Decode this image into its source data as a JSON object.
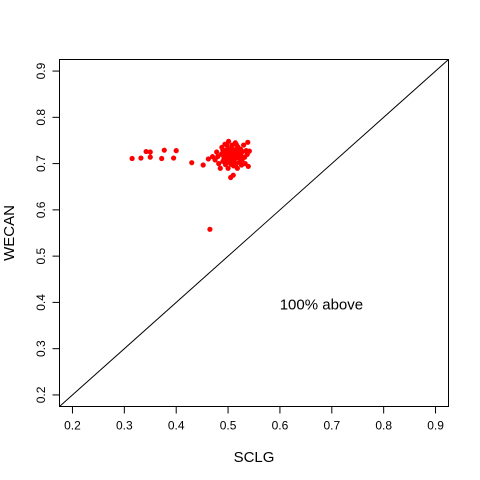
{
  "chart_data": {
    "type": "scatter",
    "title": "",
    "xlabel": "SCLG",
    "ylabel": "WECAN",
    "xlim": [
      0.175,
      0.925
    ],
    "ylim": [
      0.175,
      0.925
    ],
    "xticks": [
      0.2,
      0.3,
      0.4,
      0.5,
      0.6,
      0.7,
      0.8,
      0.9
    ],
    "yticks": [
      0.2,
      0.3,
      0.4,
      0.5,
      0.6,
      0.7,
      0.8,
      0.9
    ],
    "tick_labels_x": [
      "0.2",
      "0.3",
      "0.4",
      "0.5",
      "0.6",
      "0.7",
      "0.8",
      "0.9"
    ],
    "tick_labels_y": [
      "0.2",
      "0.3",
      "0.4",
      "0.5",
      "0.6",
      "0.7",
      "0.8",
      "0.9"
    ],
    "grid": false,
    "reference_line": {
      "type": "y=x"
    },
    "annotation": {
      "text": "100% above",
      "x": 0.68,
      "y": 0.395
    },
    "colors": {
      "points": "#ff0000",
      "line": "#000000",
      "axes": "#000000"
    },
    "series": [
      {
        "points": [
          [
            0.315,
            0.711
          ],
          [
            0.332,
            0.712
          ],
          [
            0.342,
            0.726
          ],
          [
            0.35,
            0.714
          ],
          [
            0.35,
            0.725
          ],
          [
            0.372,
            0.711
          ],
          [
            0.377,
            0.729
          ],
          [
            0.395,
            0.712
          ],
          [
            0.4,
            0.728
          ],
          [
            0.43,
            0.702
          ],
          [
            0.452,
            0.697
          ],
          [
            0.462,
            0.71
          ],
          [
            0.465,
            0.558
          ],
          [
            0.47,
            0.715
          ],
          [
            0.475,
            0.708
          ],
          [
            0.478,
            0.725
          ],
          [
            0.48,
            0.715
          ],
          [
            0.482,
            0.7
          ],
          [
            0.485,
            0.69
          ],
          [
            0.487,
            0.72
          ],
          [
            0.488,
            0.735
          ],
          [
            0.49,
            0.705
          ],
          [
            0.49,
            0.728
          ],
          [
            0.492,
            0.712
          ],
          [
            0.494,
            0.742
          ],
          [
            0.495,
            0.698
          ],
          [
            0.496,
            0.722
          ],
          [
            0.497,
            0.73
          ],
          [
            0.498,
            0.706
          ],
          [
            0.499,
            0.716
          ],
          [
            0.5,
            0.69
          ],
          [
            0.5,
            0.725
          ],
          [
            0.501,
            0.748
          ],
          [
            0.502,
            0.708
          ],
          [
            0.503,
            0.718
          ],
          [
            0.504,
            0.732
          ],
          [
            0.505,
            0.7
          ],
          [
            0.505,
            0.67
          ],
          [
            0.506,
            0.713
          ],
          [
            0.507,
            0.724
          ],
          [
            0.508,
            0.74
          ],
          [
            0.509,
            0.705
          ],
          [
            0.51,
            0.675
          ],
          [
            0.51,
            0.72
          ],
          [
            0.511,
            0.695
          ],
          [
            0.512,
            0.73
          ],
          [
            0.513,
            0.71
          ],
          [
            0.514,
            0.745
          ],
          [
            0.515,
            0.715
          ],
          [
            0.516,
            0.7
          ],
          [
            0.517,
            0.727
          ],
          [
            0.518,
            0.69
          ],
          [
            0.519,
            0.736
          ],
          [
            0.52,
            0.712
          ],
          [
            0.521,
            0.722
          ],
          [
            0.522,
            0.703
          ],
          [
            0.524,
            0.731
          ],
          [
            0.525,
            0.717
          ],
          [
            0.527,
            0.708
          ],
          [
            0.528,
            0.726
          ],
          [
            0.53,
            0.74
          ],
          [
            0.532,
            0.714
          ],
          [
            0.533,
            0.7
          ],
          [
            0.535,
            0.728
          ],
          [
            0.537,
            0.72
          ],
          [
            0.538,
            0.746
          ],
          [
            0.539,
            0.694
          ],
          [
            0.541,
            0.727
          ],
          [
            0.506,
            0.733
          ],
          [
            0.498,
            0.74
          ],
          [
            0.511,
            0.706
          ],
          [
            0.503,
            0.702
          ],
          [
            0.494,
            0.716
          ],
          [
            0.519,
            0.718
          ],
          [
            0.526,
            0.697
          ],
          [
            0.516,
            0.741
          ],
          [
            0.507,
            0.698
          ],
          [
            0.5,
            0.713
          ],
          [
            0.512,
            0.723
          ],
          [
            0.492,
            0.727
          ]
        ]
      }
    ]
  }
}
